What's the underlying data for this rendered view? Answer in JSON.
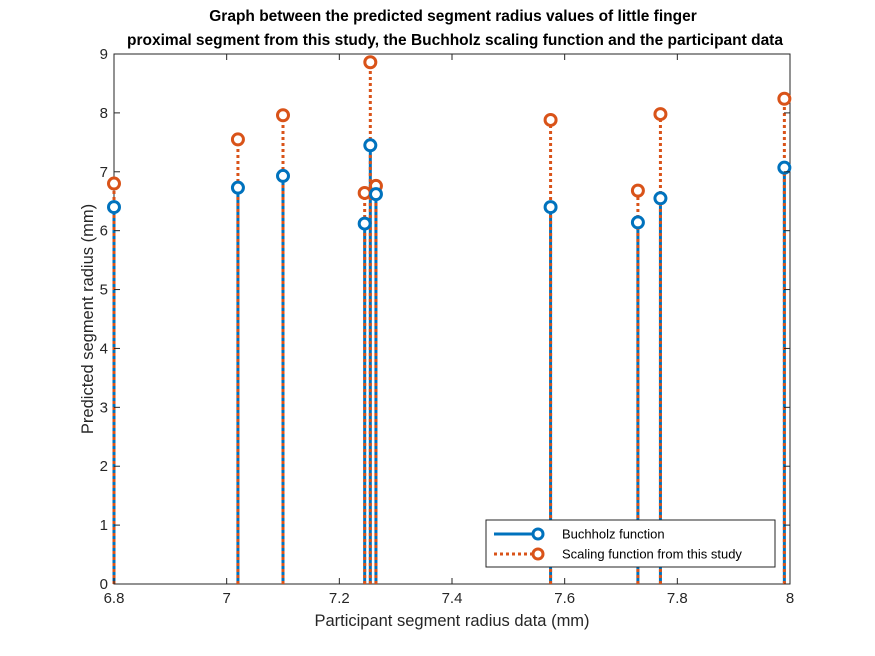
{
  "chart_data": {
    "type": "stem",
    "title": "Graph between the predicted segment radius values of little finger",
    "subtitle": "proximal segment from this study, the Buchholz scaling function and the participant data",
    "xlabel": "Participant segment radius data (mm)",
    "ylabel": "Predicted segment radius (mm)",
    "xlim": [
      6.8,
      8
    ],
    "ylim": [
      0,
      9
    ],
    "xticks": [
      "6.8",
      "7",
      "7.2",
      "7.4",
      "7.6",
      "7.8",
      "8"
    ],
    "yticks": [
      "0",
      "1",
      "2",
      "3",
      "4",
      "5",
      "6",
      "7",
      "8",
      "9"
    ],
    "legend_position": "bottom-right",
    "grid": false,
    "series": [
      {
        "name": "Buchholz function",
        "color": "#0072BD",
        "line_style": "solid",
        "points": [
          {
            "x": 6.8,
            "y": 6.4
          },
          {
            "x": 7.02,
            "y": 6.73
          },
          {
            "x": 7.1,
            "y": 6.93
          },
          {
            "x": 7.245,
            "y": 6.12
          },
          {
            "x": 7.255,
            "y": 7.45
          },
          {
            "x": 7.265,
            "y": 6.62
          },
          {
            "x": 7.575,
            "y": 6.4
          },
          {
            "x": 7.73,
            "y": 6.14
          },
          {
            "x": 7.77,
            "y": 6.55
          },
          {
            "x": 7.99,
            "y": 7.07
          }
        ]
      },
      {
        "name": "Scaling function from this study",
        "color": "#D95319",
        "line_style": "dotted",
        "points": [
          {
            "x": 6.8,
            "y": 6.8
          },
          {
            "x": 7.02,
            "y": 7.55
          },
          {
            "x": 7.1,
            "y": 7.96
          },
          {
            "x": 7.245,
            "y": 6.64
          },
          {
            "x": 7.255,
            "y": 8.86
          },
          {
            "x": 7.265,
            "y": 6.76
          },
          {
            "x": 7.575,
            "y": 7.88
          },
          {
            "x": 7.73,
            "y": 6.68
          },
          {
            "x": 7.77,
            "y": 7.98
          },
          {
            "x": 7.99,
            "y": 8.24
          }
        ]
      }
    ]
  }
}
